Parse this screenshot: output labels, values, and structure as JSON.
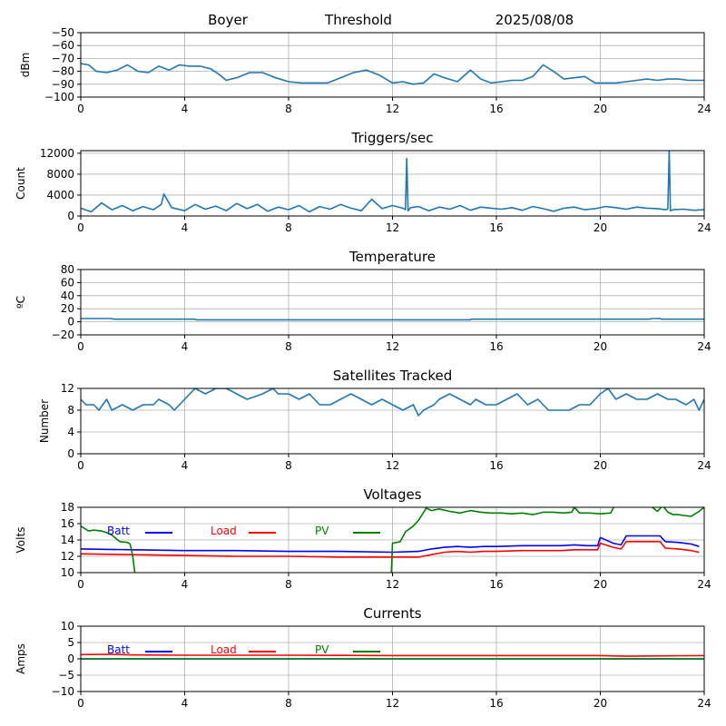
{
  "header": {
    "station": "Boyer",
    "mode": "Threshold",
    "date": "2025/08/08"
  },
  "colors": {
    "series": "#1f77b4",
    "grid": "#b0b0b0",
    "axis": "#000000",
    "batt": "#0000ff",
    "load": "#ff0000",
    "pv": "#008000"
  },
  "chart_data": [
    {
      "type": "line",
      "id": "signal",
      "title": "",
      "xlabel": "",
      "ylabel": "dBm",
      "xlim": [
        0,
        24
      ],
      "ylim": [
        -100,
        -50
      ],
      "xticks": [
        0,
        4,
        8,
        12,
        16,
        20,
        24
      ],
      "yticks": [
        -100,
        -90,
        -80,
        -70,
        -60,
        -50
      ],
      "grid": true,
      "series": [
        {
          "x": [
            0,
            0.3,
            0.6,
            1,
            1.4,
            1.8,
            2.2,
            2.6,
            3,
            3.4,
            3.8,
            4.2,
            4.6,
            5,
            5.3,
            5.6,
            6,
            6.5,
            7,
            7.5,
            8,
            8.5,
            9,
            9.5,
            10,
            10.5,
            11,
            11.5,
            12,
            12.4,
            12.8,
            13.2,
            13.6,
            14,
            14.5,
            15,
            15.4,
            15.8,
            16.2,
            16.6,
            17,
            17.4,
            17.8,
            18.2,
            18.6,
            19,
            19.4,
            19.8,
            20.2,
            20.6,
            21,
            21.4,
            21.8,
            22.2,
            22.6,
            23,
            23.4,
            24
          ],
          "y": [
            -74,
            -75,
            -80,
            -81,
            -79,
            -75,
            -80,
            -81,
            -76,
            -79,
            -75,
            -76,
            -76,
            -78,
            -82,
            -87,
            -85,
            -81,
            -81,
            -85,
            -88,
            -89,
            -89,
            -89,
            -85,
            -81,
            -79,
            -83,
            -89,
            -88,
            -90,
            -89,
            -82,
            -85,
            -88,
            -79,
            -86,
            -89,
            -88,
            -87,
            -87,
            -84,
            -75,
            -80,
            -86,
            -85,
            -84,
            -89,
            -89,
            -89,
            -88,
            -87,
            -86,
            -87,
            -86,
            -86,
            -87,
            -87
          ]
        }
      ]
    },
    {
      "type": "line",
      "id": "triggers",
      "title": "Triggers/sec",
      "xlabel": "",
      "ylabel": "Count",
      "xlim": [
        0,
        24
      ],
      "ylim": [
        0,
        12500
      ],
      "xticks": [
        0,
        4,
        8,
        12,
        16,
        20,
        24
      ],
      "yticks": [
        0,
        4000,
        8000,
        12000
      ],
      "grid": true,
      "series": [
        {
          "x": [
            0,
            0.4,
            0.8,
            1.2,
            1.6,
            2,
            2.4,
            2.8,
            3.1,
            3.2,
            3.5,
            4,
            4.4,
            4.8,
            5.2,
            5.6,
            6,
            6.4,
            6.8,
            7.2,
            7.6,
            8,
            8.4,
            8.8,
            9.2,
            9.6,
            10,
            10.4,
            10.8,
            11.2,
            11.6,
            12,
            12.4,
            12.5,
            12.55,
            12.6,
            12.7,
            13,
            13.4,
            13.8,
            14.2,
            14.6,
            15,
            15.4,
            15.8,
            16.2,
            16.6,
            17,
            17.4,
            17.8,
            18.2,
            18.6,
            19,
            19.4,
            19.8,
            20.2,
            20.6,
            21,
            21.4,
            21.8,
            22.2,
            22.5,
            22.6,
            22.65,
            22.7,
            22.8,
            23.2,
            23.6,
            24
          ],
          "y": [
            1500,
            800,
            2500,
            1200,
            2000,
            1000,
            1800,
            1200,
            2200,
            4200,
            1600,
            1000,
            2200,
            1300,
            1900,
            1000,
            2400,
            1400,
            2200,
            900,
            1700,
            1200,
            2000,
            800,
            1800,
            1300,
            2200,
            1500,
            1000,
            3200,
            1400,
            2000,
            1500,
            1200,
            11000,
            1000,
            1600,
            1800,
            1000,
            1700,
            1300,
            2000,
            1100,
            1700,
            1500,
            1300,
            1600,
            1100,
            1800,
            1400,
            900,
            1500,
            1700,
            1200,
            1400,
            1800,
            1600,
            1300,
            1700,
            1500,
            1400,
            1200,
            1300,
            12500,
            1000,
            1200,
            1300,
            1100,
            1200
          ]
        }
      ]
    },
    {
      "type": "line",
      "id": "temperature",
      "title": "Temperature",
      "xlabel": "",
      "ylabel": "ºC",
      "xlim": [
        0,
        24
      ],
      "ylim": [
        -20,
        80
      ],
      "xticks": [
        0,
        4,
        8,
        12,
        16,
        20,
        24
      ],
      "yticks": [
        -20,
        0,
        20,
        40,
        60,
        80
      ],
      "grid": true,
      "series": [
        {
          "x": [
            0,
            1.2,
            1.25,
            4.4,
            4.45,
            15,
            15.05,
            21.9,
            22,
            22.3,
            22.35,
            24
          ],
          "y": [
            5,
            5,
            4,
            4,
            3,
            3,
            4,
            4,
            5,
            5,
            4,
            4
          ]
        }
      ]
    },
    {
      "type": "line",
      "id": "satellites",
      "title": "Satellites Tracked",
      "xlabel": "",
      "ylabel": "Number",
      "xlim": [
        0,
        24
      ],
      "ylim": [
        0,
        12
      ],
      "xticks": [
        0,
        4,
        8,
        12,
        16,
        20,
        24
      ],
      "yticks": [
        0,
        4,
        8,
        12
      ],
      "grid": true,
      "series": [
        {
          "x": [
            0,
            0.2,
            0.5,
            0.7,
            1,
            1.2,
            1.6,
            2,
            2.4,
            2.8,
            3,
            3.4,
            3.6,
            4,
            4.2,
            4.4,
            4.8,
            5.2,
            5.6,
            6,
            6.4,
            7,
            7.4,
            7.6,
            8,
            8.4,
            8.8,
            9.2,
            9.6,
            10,
            10.4,
            10.8,
            11.2,
            11.6,
            12,
            12.4,
            12.8,
            13,
            13.2,
            13.6,
            13.8,
            14.2,
            14.6,
            15,
            15.2,
            15.6,
            16,
            16.4,
            16.8,
            17.2,
            17.6,
            18,
            18.4,
            18.8,
            19.2,
            19.6,
            20,
            20.3,
            20.6,
            21,
            21.4,
            21.8,
            22.2,
            22.6,
            22.9,
            23.3,
            23.6,
            23.8,
            24
          ],
          "y": [
            10,
            9,
            9,
            8,
            10,
            8,
            9,
            8,
            9,
            9,
            10,
            9,
            8,
            10,
            11,
            12,
            11,
            12,
            12,
            11,
            10,
            11,
            12,
            11,
            11,
            10,
            11,
            9,
            9,
            10,
            11,
            10,
            9,
            10,
            9,
            8,
            9,
            7,
            8,
            9,
            10,
            11,
            10,
            9,
            10,
            9,
            9,
            10,
            11,
            9,
            10,
            8,
            8,
            8,
            9,
            9,
            11,
            12,
            10,
            11,
            10,
            10,
            11,
            10,
            10,
            9,
            10,
            8,
            10
          ]
        }
      ]
    },
    {
      "type": "line",
      "id": "voltages",
      "title": "Voltages",
      "xlabel": "",
      "ylabel": "Volts",
      "xlim": [
        0,
        24
      ],
      "ylim": [
        10,
        18
      ],
      "xticks": [
        0,
        4,
        8,
        12,
        16,
        20,
        24
      ],
      "yticks": [
        10,
        12,
        14,
        16,
        18
      ],
      "grid": true,
      "legend": "top",
      "series": [
        {
          "name": "Batt",
          "color_key": "batt",
          "x": [
            0,
            2,
            4,
            6,
            8,
            10,
            12,
            13,
            13.5,
            14,
            14.5,
            15,
            15.5,
            16,
            17,
            18,
            18.5,
            19,
            19.5,
            19.9,
            20,
            20.5,
            20.8,
            21,
            21.5,
            22,
            22.3,
            22.5,
            23,
            23.5,
            23.8
          ],
          "y": [
            12.9,
            12.8,
            12.7,
            12.7,
            12.6,
            12.6,
            12.5,
            12.6,
            12.9,
            13.1,
            13.2,
            13.1,
            13.2,
            13.2,
            13.3,
            13.3,
            13.3,
            13.4,
            13.3,
            13.3,
            14.3,
            13.6,
            13.4,
            14.5,
            14.5,
            14.5,
            14.5,
            13.8,
            13.7,
            13.5,
            13.2
          ]
        },
        {
          "name": "Load",
          "color_key": "load",
          "x": [
            0,
            2,
            4,
            6,
            8,
            10,
            12,
            13,
            13.5,
            14,
            14.5,
            15,
            15.5,
            16,
            17,
            18,
            18.5,
            19,
            19.5,
            19.9,
            20,
            20.5,
            20.8,
            21,
            21.5,
            22,
            22.3,
            22.5,
            23,
            23.5,
            23.8
          ],
          "y": [
            12.3,
            12.2,
            12.1,
            12.0,
            12.0,
            11.9,
            11.9,
            11.9,
            12.2,
            12.5,
            12.6,
            12.5,
            12.6,
            12.6,
            12.7,
            12.7,
            12.7,
            12.8,
            12.8,
            12.8,
            13.6,
            13.1,
            12.9,
            13.8,
            13.8,
            13.8,
            13.8,
            13.0,
            12.9,
            12.7,
            12.5
          ]
        },
        {
          "name": "PV",
          "color_key": "pv",
          "x": [
            0,
            0.3,
            0.5,
            0.8,
            1,
            1.2,
            1.5,
            1.8,
            1.9,
            2,
            2.1,
            11.95,
            12,
            12.3,
            12.5,
            12.8,
            13,
            13.3,
            13.5,
            13.8,
            14.2,
            14.6,
            15,
            15.4,
            15.8,
            16.2,
            16.6,
            17,
            17.4,
            17.8,
            18.2,
            18.6,
            18.9,
            19,
            19.2,
            19.6,
            20,
            20.4,
            20.6,
            21,
            21.3,
            21.6,
            21.9,
            22,
            22.2,
            22.4,
            22.6,
            22.8,
            23,
            23.2,
            23.5,
            23.8,
            24
          ],
          "y": [
            15.7,
            15.1,
            15.2,
            15.1,
            14.9,
            14.6,
            13.8,
            13.7,
            13.5,
            12,
            9.5,
            9.5,
            13.6,
            13.8,
            15,
            15.7,
            16.4,
            17.9,
            17.6,
            17.8,
            17.5,
            17.3,
            17.6,
            17.4,
            17.3,
            17.3,
            17.2,
            17.3,
            17.1,
            17.4,
            17.4,
            17.3,
            17.4,
            18,
            17.3,
            17.3,
            17.2,
            17.3,
            18.5,
            18.5,
            18.5,
            18.5,
            18.5,
            18,
            17.5,
            18.2,
            17.4,
            17.1,
            17.1,
            17.0,
            16.9,
            17.5,
            18
          ]
        }
      ]
    },
    {
      "type": "line",
      "id": "currents",
      "title": "Currents",
      "xlabel": "",
      "ylabel": "Amps",
      "xlim": [
        0,
        24
      ],
      "ylim": [
        -10,
        10
      ],
      "xticks": [
        0,
        4,
        8,
        12,
        16,
        20,
        24
      ],
      "yticks": [
        -10,
        -5,
        0,
        5,
        10
      ],
      "grid": true,
      "legend": "top",
      "series": [
        {
          "name": "Batt",
          "color_key": "batt",
          "x": [
            0,
            24
          ],
          "y": [
            0.0,
            0.0
          ]
        },
        {
          "name": "Load",
          "color_key": "load",
          "x": [
            0,
            1,
            2,
            4,
            8,
            12,
            16,
            20,
            21,
            22,
            24
          ],
          "y": [
            1.3,
            1.4,
            1.2,
            1.1,
            1.1,
            1.0,
            1.0,
            1.0,
            0.8,
            0.9,
            1.0
          ]
        },
        {
          "name": "PV",
          "color_key": "pv",
          "x": [
            0,
            24
          ],
          "y": [
            0.0,
            0.0
          ]
        }
      ]
    }
  ]
}
